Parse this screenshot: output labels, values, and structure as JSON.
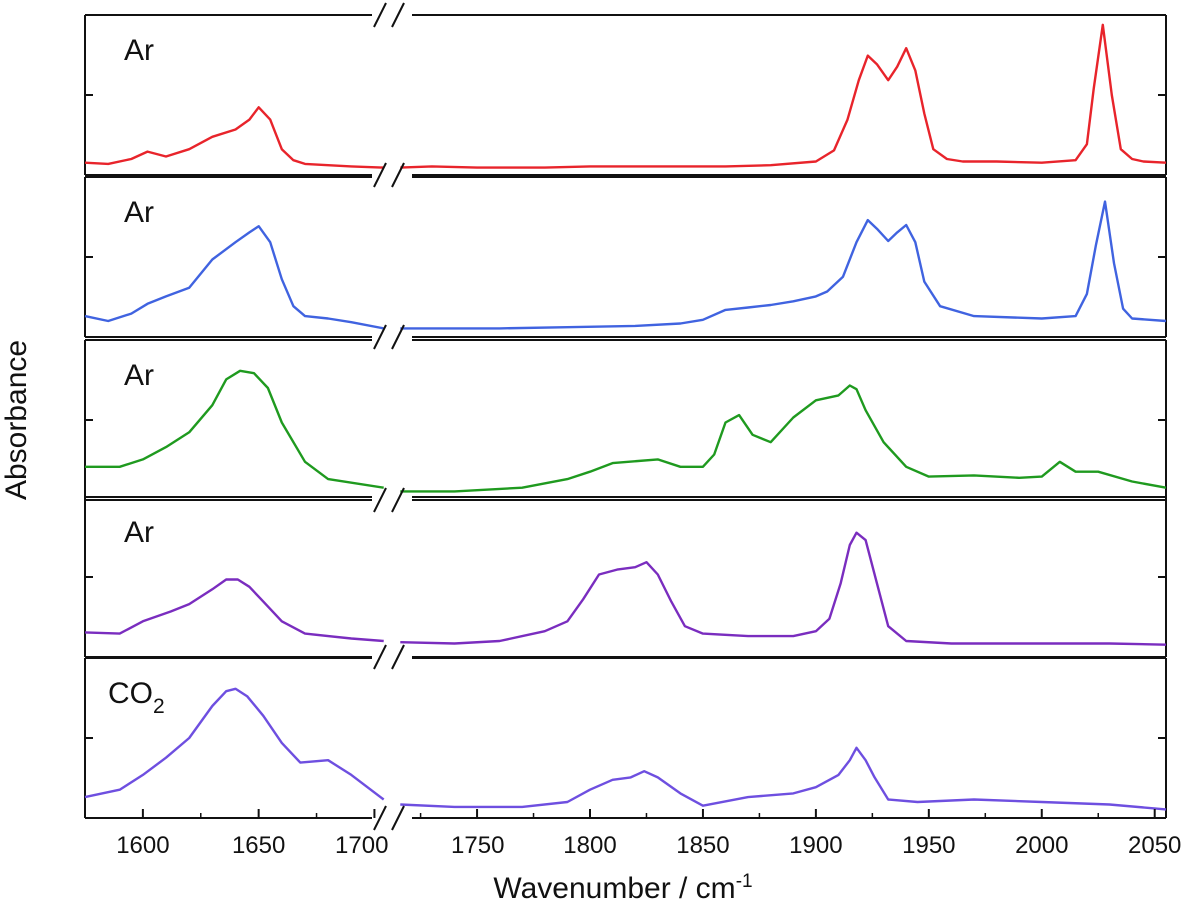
{
  "colors": {
    "frame": "#111111",
    "axis_text": "#111111",
    "background": "#ffffff"
  },
  "chart_data": {
    "type": "line",
    "xlabel": "Wavenumber / cm",
    "xlabel_superscript": "-1",
    "ylabel": "Absorbance",
    "xlim": [
      1575,
      2055
    ],
    "axis_break": [
      1705,
      1715
    ],
    "x_tick_values": [
      1600,
      1650,
      1700,
      1750,
      1800,
      1850,
      1900,
      1950,
      2000,
      2050
    ],
    "x_tick_labels": [
      "1600",
      "1650",
      "1700",
      "1750",
      "1800",
      "1850",
      "1900",
      "1950",
      "2000",
      "2050"
    ],
    "grid": false,
    "legend": "none",
    "panels": [
      {
        "label": "Ar",
        "label_subscript": "",
        "color": "#e8242b",
        "ylim": [
          -0.05,
          1.25
        ],
        "x": [
          1575,
          1585,
          1595,
          1602,
          1610,
          1620,
          1630,
          1640,
          1646,
          1650,
          1655,
          1660,
          1665,
          1670,
          1680,
          1690,
          1704,
          1716,
          1730,
          1750,
          1780,
          1800,
          1830,
          1860,
          1880,
          1900,
          1908,
          1914,
          1919,
          1923,
          1927,
          1932,
          1936,
          1940,
          1944,
          1948,
          1952,
          1958,
          1965,
          1980,
          2000,
          2015,
          2020,
          2023,
          2027,
          2031,
          2035,
          2040,
          2045,
          2055
        ],
        "y": [
          0.05,
          0.04,
          0.08,
          0.14,
          0.1,
          0.16,
          0.26,
          0.32,
          0.4,
          0.5,
          0.4,
          0.16,
          0.07,
          0.04,
          0.03,
          0.02,
          0.01,
          0.01,
          0.02,
          0.01,
          0.01,
          0.02,
          0.02,
          0.02,
          0.03,
          0.06,
          0.15,
          0.4,
          0.72,
          0.92,
          0.85,
          0.72,
          0.83,
          0.98,
          0.8,
          0.45,
          0.16,
          0.08,
          0.06,
          0.06,
          0.05,
          0.07,
          0.2,
          0.65,
          1.17,
          0.6,
          0.16,
          0.08,
          0.06,
          0.05
        ]
      },
      {
        "label": "Ar",
        "label_subscript": "",
        "color": "#4063e0",
        "ylim": [
          -0.05,
          1.25
        ],
        "x": [
          1575,
          1585,
          1595,
          1602,
          1610,
          1620,
          1630,
          1640,
          1646,
          1650,
          1655,
          1660,
          1665,
          1670,
          1680,
          1690,
          1704,
          1716,
          1730,
          1760,
          1790,
          1820,
          1840,
          1850,
          1860,
          1870,
          1880,
          1890,
          1900,
          1905,
          1912,
          1918,
          1923,
          1927,
          1932,
          1936,
          1940,
          1944,
          1948,
          1955,
          1970,
          2000,
          2015,
          2020,
          2024,
          2028,
          2032,
          2036,
          2040,
          2055
        ],
        "y": [
          0.12,
          0.08,
          0.14,
          0.22,
          0.28,
          0.35,
          0.58,
          0.72,
          0.8,
          0.85,
          0.72,
          0.42,
          0.2,
          0.12,
          0.1,
          0.07,
          0.02,
          0.02,
          0.02,
          0.02,
          0.03,
          0.04,
          0.06,
          0.09,
          0.17,
          0.19,
          0.21,
          0.24,
          0.28,
          0.32,
          0.44,
          0.72,
          0.9,
          0.83,
          0.73,
          0.8,
          0.86,
          0.72,
          0.4,
          0.2,
          0.12,
          0.1,
          0.12,
          0.3,
          0.7,
          1.05,
          0.55,
          0.18,
          0.1,
          0.08
        ]
      },
      {
        "label": "Ar",
        "label_subscript": "",
        "color": "#1f9a1f",
        "ylim": [
          -0.05,
          1.25
        ],
        "x": [
          1575,
          1590,
          1600,
          1610,
          1620,
          1630,
          1636,
          1642,
          1648,
          1654,
          1660,
          1670,
          1680,
          1704,
          1716,
          1740,
          1770,
          1790,
          1800,
          1810,
          1830,
          1840,
          1850,
          1855,
          1860,
          1866,
          1872,
          1880,
          1890,
          1900,
          1910,
          1915,
          1918,
          1922,
          1930,
          1940,
          1950,
          1970,
          1990,
          2000,
          2008,
          2015,
          2025,
          2040,
          2055
        ],
        "y": [
          0.22,
          0.22,
          0.28,
          0.38,
          0.5,
          0.72,
          0.93,
          1.0,
          0.98,
          0.86,
          0.58,
          0.26,
          0.12,
          0.05,
          0.02,
          0.02,
          0.05,
          0.12,
          0.18,
          0.25,
          0.28,
          0.22,
          0.22,
          0.32,
          0.58,
          0.64,
          0.48,
          0.42,
          0.62,
          0.76,
          0.8,
          0.88,
          0.85,
          0.68,
          0.42,
          0.22,
          0.14,
          0.15,
          0.13,
          0.14,
          0.26,
          0.18,
          0.18,
          0.1,
          0.05
        ]
      },
      {
        "label": "Ar",
        "label_subscript": "",
        "color": "#7a2dbf",
        "ylim": [
          -0.05,
          1.25
        ],
        "x": [
          1575,
          1590,
          1600,
          1612,
          1620,
          1630,
          1636,
          1641,
          1646,
          1652,
          1660,
          1670,
          1690,
          1704,
          1716,
          1740,
          1760,
          1780,
          1790,
          1797,
          1804,
          1812,
          1820,
          1825,
          1830,
          1836,
          1842,
          1850,
          1870,
          1890,
          1900,
          1906,
          1911,
          1915,
          1918,
          1922,
          1927,
          1932,
          1940,
          1960,
          2000,
          2030,
          2055
        ],
        "y": [
          0.15,
          0.14,
          0.24,
          0.32,
          0.38,
          0.5,
          0.58,
          0.58,
          0.52,
          0.4,
          0.24,
          0.14,
          0.1,
          0.08,
          0.07,
          0.06,
          0.08,
          0.16,
          0.24,
          0.42,
          0.62,
          0.66,
          0.68,
          0.72,
          0.62,
          0.4,
          0.2,
          0.14,
          0.12,
          0.12,
          0.16,
          0.26,
          0.55,
          0.86,
          0.96,
          0.9,
          0.55,
          0.2,
          0.08,
          0.06,
          0.06,
          0.06,
          0.05
        ]
      },
      {
        "label": "CO",
        "label_subscript": "2",
        "color": "#6e4fe0",
        "ylim": [
          -0.05,
          1.25
        ],
        "x": [
          1575,
          1590,
          1600,
          1610,
          1620,
          1630,
          1636,
          1640,
          1645,
          1652,
          1660,
          1668,
          1680,
          1690,
          1704,
          1716,
          1740,
          1770,
          1790,
          1800,
          1810,
          1818,
          1824,
          1830,
          1840,
          1850,
          1870,
          1890,
          1900,
          1910,
          1915,
          1918,
          1922,
          1926,
          1932,
          1945,
          1970,
          2000,
          2030,
          2055
        ],
        "y": [
          0.12,
          0.18,
          0.3,
          0.44,
          0.6,
          0.86,
          0.98,
          1.0,
          0.94,
          0.78,
          0.56,
          0.4,
          0.42,
          0.3,
          0.1,
          0.06,
          0.04,
          0.04,
          0.08,
          0.18,
          0.26,
          0.28,
          0.33,
          0.28,
          0.15,
          0.05,
          0.12,
          0.15,
          0.2,
          0.3,
          0.42,
          0.52,
          0.42,
          0.28,
          0.1,
          0.08,
          0.1,
          0.08,
          0.06,
          0.02
        ]
      }
    ]
  }
}
